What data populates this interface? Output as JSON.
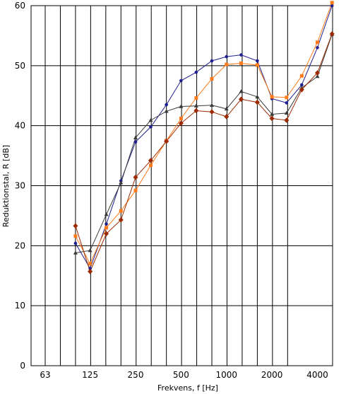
{
  "chart_data": {
    "type": "line",
    "title": "",
    "xlabel": "Frekvens, f [Hz]",
    "ylabel": "Reduktionstal, R [dB]",
    "x_scale": "log",
    "ylim": [
      0,
      60
    ],
    "y_ticks": [
      0,
      10,
      20,
      30,
      40,
      50,
      60
    ],
    "x_tick_labels": [
      {
        "f": 63,
        "label": "63"
      },
      {
        "f": 125,
        "label": "125"
      },
      {
        "f": 250,
        "label": "250"
      },
      {
        "f": 500,
        "label": "500"
      },
      {
        "f": 1000,
        "label": "1000"
      },
      {
        "f": 2000,
        "label": "2000"
      },
      {
        "f": 4000,
        "label": "4000"
      }
    ],
    "grid": true,
    "x": [
      100,
      125,
      160,
      200,
      250,
      315,
      400,
      500,
      630,
      800,
      1000,
      1250,
      1600,
      2000,
      2500,
      3150,
      4000,
      5000
    ],
    "series": [
      {
        "color": "#1f1f8f",
        "marker": "circle",
        "values": [
          20.4,
          16.2,
          23.6,
          30.8,
          37.3,
          39.8,
          43.5,
          47.5,
          48.9,
          50.8,
          51.5,
          51.8,
          50.8,
          44.5,
          43.8,
          46.8,
          53.0,
          60.0
        ]
      },
      {
        "color": "#ff7a1a",
        "marker": "square",
        "values": [
          21.6,
          17.0,
          23.0,
          25.8,
          29.2,
          33.4,
          37.5,
          41.2,
          44.6,
          47.8,
          50.2,
          50.4,
          50.1,
          44.8,
          44.7,
          48.3,
          53.9,
          60.5
        ]
      },
      {
        "color": "#3a3a3a",
        "marker": "triangle",
        "values": [
          18.8,
          19.2,
          25.2,
          30.5,
          38.0,
          40.9,
          42.4,
          43.2,
          43.3,
          43.4,
          42.8,
          45.7,
          44.8,
          41.9,
          42.1,
          46.3,
          48.2,
          55.2
        ]
      },
      {
        "color": "#9c2a00",
        "marker": "diamond",
        "values": [
          23.3,
          15.7,
          22.0,
          24.3,
          31.4,
          34.2,
          37.4,
          40.4,
          42.5,
          42.3,
          41.5,
          44.4,
          43.9,
          41.2,
          40.9,
          46.0,
          48.8,
          55.3
        ]
      }
    ]
  }
}
